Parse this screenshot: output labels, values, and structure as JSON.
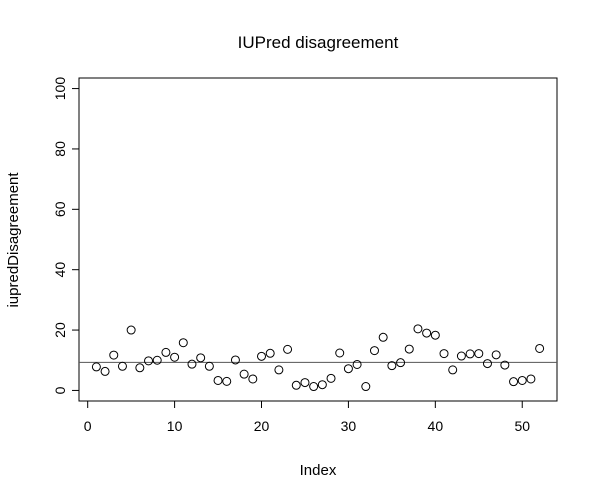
{
  "chart_data": {
    "type": "scatter",
    "title": "IUPred disagreement",
    "xlabel": "Index",
    "ylabel": "iupredDisagreement",
    "xlim": [
      -1,
      54
    ],
    "ylim": [
      -3.5,
      103.5
    ],
    "xticks": [
      0,
      10,
      20,
      30,
      40,
      50
    ],
    "yticks": [
      0,
      20,
      40,
      60,
      80,
      100
    ],
    "grid": false,
    "legend": "none",
    "reference_line_y": 9.3,
    "marker": "open-circle",
    "x": [
      1,
      2,
      3,
      4,
      5,
      6,
      7,
      8,
      9,
      10,
      11,
      12,
      13,
      14,
      15,
      16,
      17,
      18,
      19,
      20,
      21,
      22,
      23,
      24,
      25,
      26,
      27,
      28,
      29,
      30,
      31,
      32,
      33,
      34,
      35,
      36,
      37,
      38,
      39,
      40,
      41,
      42,
      43,
      44,
      45,
      46,
      47,
      48,
      49,
      50,
      51,
      52
    ],
    "y": [
      7.8,
      6.3,
      11.7,
      8.0,
      20.0,
      7.5,
      9.8,
      10.0,
      12.6,
      11.0,
      15.8,
      8.7,
      10.8,
      8.0,
      3.3,
      3.0,
      10.1,
      5.4,
      3.8,
      11.3,
      12.3,
      6.8,
      13.6,
      1.7,
      2.6,
      1.3,
      1.9,
      4.0,
      12.4,
      7.2,
      8.6,
      1.3,
      13.2,
      17.6,
      8.2,
      9.2,
      13.7,
      20.4,
      19.0,
      18.3,
      12.2,
      6.8,
      11.4,
      12.1,
      12.2,
      8.9,
      11.8,
      8.4,
      2.9,
      3.3,
      3.8,
      13.9
    ]
  }
}
